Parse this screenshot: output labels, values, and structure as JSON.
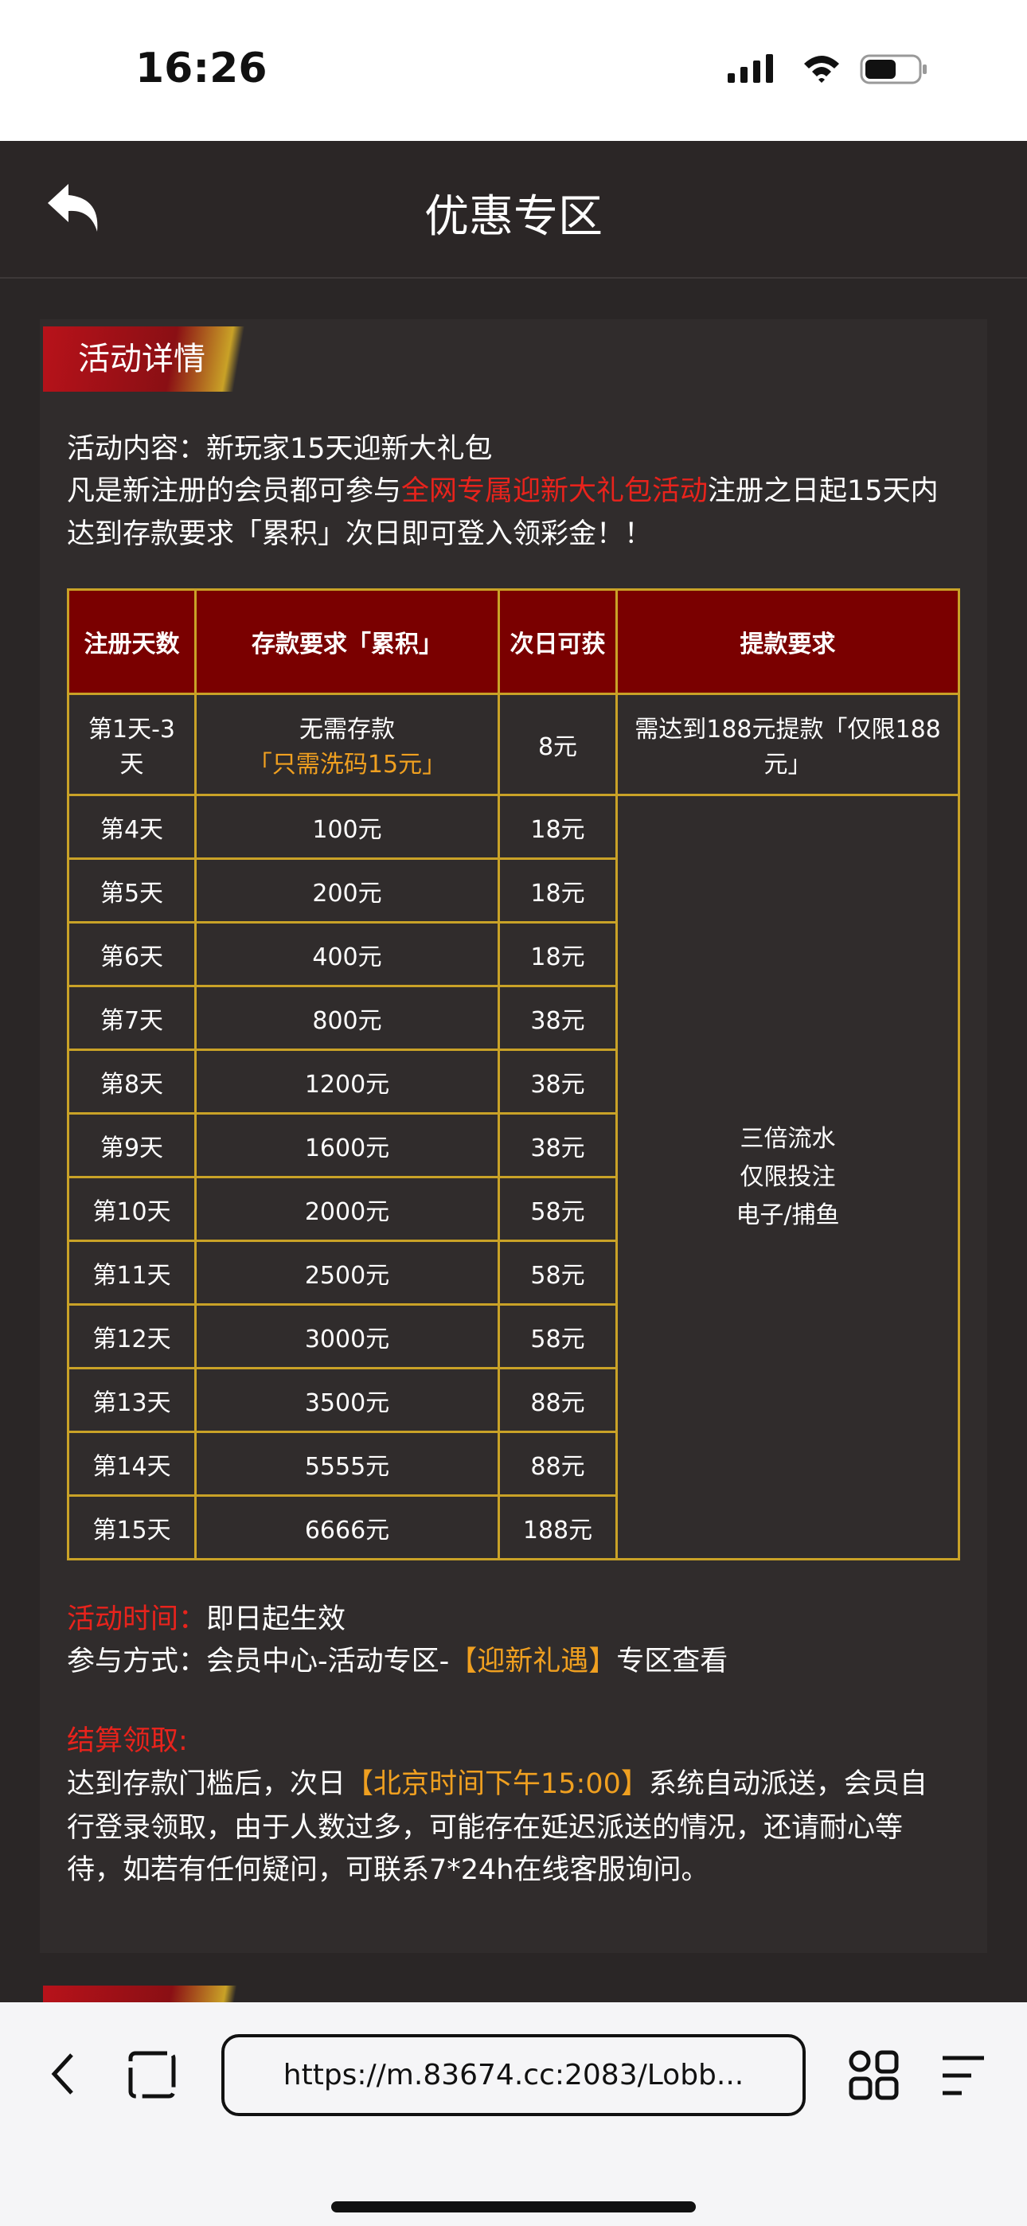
{
  "status_bar": {
    "time": "16:26"
  },
  "header": {
    "title": "优惠专区"
  },
  "section": {
    "badge": "活动详情",
    "line1": "活动内容：新玩家15天迎新大礼包",
    "line2": [
      "凡是新注册的会员都可参与",
      "全网专属迎新大礼包活动",
      "注册之日起15天内"
    ],
    "line3": "达到存款要求「累积」次日即可登入领彩金！！",
    "table": {
      "headers": [
        "注册天数",
        "存款要求「累积」",
        "次日可获",
        "提款要求"
      ],
      "first_row": {
        "day": "第1天-3天",
        "deposit": "无需存款",
        "deposit_highlight": "「只需洗码15元」",
        "bonus": "8元",
        "withdraw": "需达到188元提款「仅限188元」"
      },
      "rows": [
        [
          "第4天",
          "100元",
          "18元"
        ],
        [
          "第5天",
          "200元",
          "18元"
        ],
        [
          "第6天",
          "400元",
          "18元"
        ],
        [
          "第7天",
          "800元",
          "38元"
        ],
        [
          "第8天",
          "1200元",
          "38元"
        ],
        [
          "第9天",
          "1600元",
          "38元"
        ],
        [
          "第10天",
          "2000元",
          "58元"
        ],
        [
          "第11天",
          "2500元",
          "58元"
        ],
        [
          "第12天",
          "3000元",
          "58元"
        ],
        [
          "第13天",
          "3500元",
          "88元"
        ],
        [
          "第14天",
          "5555元",
          "88元"
        ],
        [
          "第15天",
          "6666元",
          "188元"
        ]
      ],
      "merged_note": [
        "三倍流水",
        "仅限投注",
        "电子/捕鱼"
      ]
    },
    "time_label": "活动时间：",
    "time_value": "即日起生效",
    "join_label": "参与方式：",
    "join_parts": [
      "会员中心-活动专区-",
      "【迎新礼遇】",
      "专区查看"
    ],
    "settle_label": "结算领取:",
    "settle_line1": [
      "达到存款门槛后，次日",
      "【北京时间下午15:00】",
      "系统自动派送，会员自"
    ],
    "settle_line2": "行登录领取，由于人数过多，可能存在延迟派送的情况，还请耐心等",
    "settle_line3": "待，如若有任何疑问，可联系7*24h在线客服询问。"
  },
  "browser": {
    "url": "https://m.83674.cc:2083/Lobb..."
  }
}
